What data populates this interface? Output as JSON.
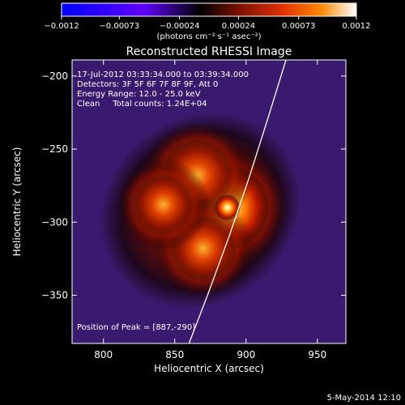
{
  "chart_data": {
    "type": "heatmap",
    "title": "Reconstructed RHESSI Image",
    "xlabel": "Heliocentric X (arcsec)",
    "ylabel": "Heliocentric Y (arcsec)",
    "xlim": [
      778,
      970
    ],
    "ylim": [
      -383,
      -189
    ],
    "x_ticks": [
      800,
      850,
      900,
      950
    ],
    "y_ticks": [
      -200,
      -250,
      -300,
      -350
    ],
    "x_tick_labels": [
      "800",
      "850",
      "900",
      "950"
    ],
    "y_tick_labels": [
      "−200",
      "−250",
      "−300",
      "−350"
    ],
    "colorbar": {
      "range": [
        -0.0012,
        0.0012
      ],
      "ticks": [
        -0.0012,
        -0.00073,
        -0.00024,
        0.00024,
        0.00073,
        0.0012
      ],
      "tick_labels": [
        "−0.0012",
        "−0.00073",
        "−0.00024",
        "0.00024",
        "0.00073",
        "0.0012"
      ],
      "label": "(photons cm⁻² s⁻¹ asec⁻²)",
      "colors": [
        "#0000ff",
        "#6000ff",
        "#000000",
        "#7a1000",
        "#e03000",
        "#ff8800",
        "#ffffff"
      ]
    },
    "annotations": [
      "17-Jul-2012 03:33:34.000 to 03:39:34.000",
      "Detectors: 3F 5F 6F 7F 8F 9F, Att 0",
      "Energy Range: 12.0 - 25.0 keV",
      "Clean     Total counts: 1.24E+04",
      "Position of Peak = [887,-290]"
    ],
    "sources": [
      {
        "x": 887,
        "y": -290,
        "intensity": 1.0
      },
      {
        "x": 866,
        "y": -268,
        "intensity": 0.8
      },
      {
        "x": 870,
        "y": -318,
        "intensity": 0.7
      },
      {
        "x": 842,
        "y": -288,
        "intensity": 0.6
      }
    ],
    "limb_curve": [
      [
        928,
        -189
      ],
      [
        915,
        -230
      ],
      [
        902,
        -270
      ],
      [
        888,
        -310
      ],
      [
        873,
        -350
      ],
      [
        860,
        -383
      ]
    ],
    "background_color": "#3a1a6e",
    "footer_date": "5-May-2014 12:10"
  }
}
